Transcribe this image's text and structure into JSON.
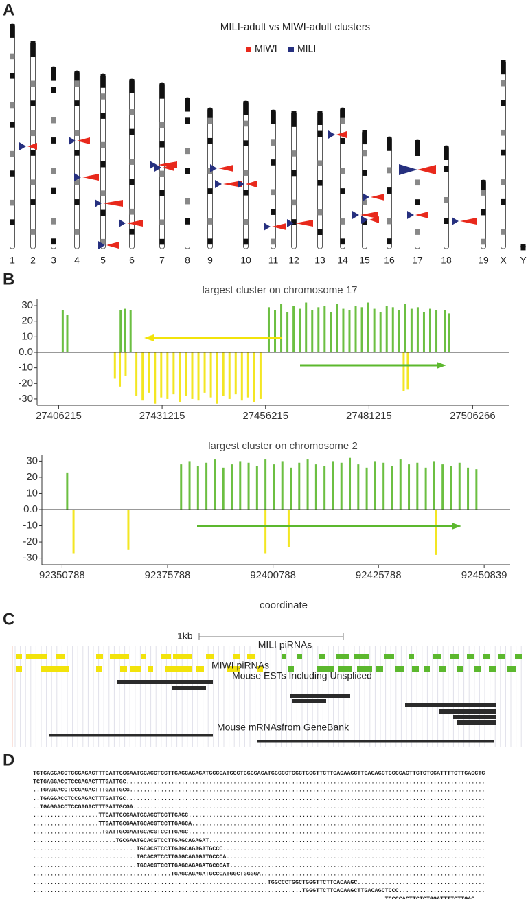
{
  "panel_a": {
    "label": "A",
    "title": "MILI-adult  vs MIWI-adult clusters",
    "legend": [
      {
        "name": "MIWI",
        "color": "#e8291c"
      },
      {
        "name": "MILI",
        "color": "#26307f"
      }
    ],
    "chromosomes": [
      "1",
      "2",
      "3",
      "4",
      "5",
      "6",
      "7",
      "8",
      "9",
      "10",
      "11",
      "12",
      "13",
      "14",
      "15",
      "16",
      "17",
      "18",
      "19",
      "X",
      "Y"
    ]
  },
  "panel_b": {
    "label": "B"
  },
  "chart_data": [
    {
      "type": "bar",
      "title": "largest cluster on chromosome 17",
      "xlim": [
        27401000,
        27515000
      ],
      "xticks": [
        27406215,
        27431215,
        27456215,
        27481215,
        27506266
      ],
      "ylim": [
        -34,
        34
      ],
      "yticks": [
        30,
        20,
        10,
        {
          "value": 0,
          "label": "0.0"
        },
        -10,
        -20,
        -30
      ],
      "series": [
        {
          "color": "#5cb82e",
          "x": [
            27407200,
            27408300,
            27421200,
            27422300,
            27423600,
            27457000,
            27458500,
            27460000,
            27461500,
            27463000,
            27464500,
            27466000,
            27467500,
            27469000,
            27470500,
            27472000,
            27473500,
            27475000,
            27476500,
            27478000,
            27479500,
            27481000,
            27482500,
            27484000,
            27485500,
            27487000,
            27488500,
            27490000,
            27491500,
            27493000,
            27494500,
            27496000,
            27497500,
            27499500,
            27500600
          ],
          "values": [
            27,
            24,
            27,
            28,
            27,
            29,
            27,
            31,
            26,
            30,
            28,
            32,
            27,
            29,
            30,
            26,
            31,
            28,
            27,
            30,
            29,
            32,
            28,
            26,
            30,
            29,
            27,
            31,
            28,
            29,
            26,
            28,
            27,
            27,
            25
          ]
        },
        {
          "color": "#f2e30b",
          "x": [
            27419800,
            27421000,
            27422400,
            27425000,
            27426500,
            27428000,
            27429500,
            27431000,
            27432500,
            27434000,
            27435500,
            27437000,
            27438500,
            27440000,
            27441500,
            27443000,
            27444500,
            27446000,
            27447500,
            27449000,
            27450500,
            27452000,
            27453500,
            27455000,
            27489600,
            27490600
          ],
          "values": [
            -17,
            -22,
            -15,
            -28,
            -31,
            -26,
            -33,
            -29,
            -30,
            -27,
            -32,
            -28,
            -30,
            -31,
            -26,
            -29,
            -33,
            -28,
            -30,
            -27,
            -31,
            -29,
            -32,
            -30,
            -25,
            -24
          ]
        }
      ]
    },
    {
      "type": "bar",
      "title": "largest cluster on chromosome 2",
      "x_label": "coordinate",
      "xlim": [
        92346000,
        92457000
      ],
      "xticks": [
        92350788,
        92375788,
        92400788,
        92425788,
        92450839
      ],
      "ylim": [
        -34,
        34
      ],
      "yticks": [
        30,
        20,
        10,
        {
          "value": 0,
          "label": "0.0"
        },
        -10,
        -20,
        -30
      ],
      "series": [
        {
          "color": "#5cb82e",
          "x": [
            92352000,
            92379000,
            92381000,
            92383000,
            92385000,
            92387000,
            92389000,
            92391000,
            92393000,
            92395000,
            92397000,
            92399000,
            92401000,
            92403000,
            92405000,
            92407000,
            92409000,
            92411000,
            92413000,
            92415000,
            92417000,
            92419000,
            92421000,
            92423000,
            92425000,
            92427000,
            92429000,
            92431000,
            92433000,
            92435000,
            92437000,
            92439000,
            92441000,
            92443000,
            92445000,
            92447000,
            92449000
          ],
          "values": [
            23,
            28,
            30,
            27,
            29,
            31,
            26,
            28,
            30,
            29,
            27,
            31,
            28,
            30,
            26,
            29,
            31,
            28,
            27,
            30,
            29,
            32,
            28,
            26,
            30,
            29,
            27,
            31,
            28,
            29,
            26,
            30,
            28,
            27,
            29,
            26,
            25
          ]
        },
        {
          "color": "#f2e30b",
          "x": [
            92353500,
            92366500,
            92399000,
            92404500,
            92439500
          ],
          "values": [
            -27,
            -25,
            -27,
            -23,
            -28
          ]
        }
      ]
    }
  ],
  "panel_c": {
    "label": "C",
    "scale": "1kb",
    "tracks": [
      "MILI piRNAs",
      "MIWI piRNAs",
      "Mouse ESTs Including Unspliced",
      "Mouse mRNAsfrom GeneBank"
    ]
  },
  "panel_d": {
    "label": "D",
    "rows": [
      "TCTGAGGACCTCCGAGACTTTGATTGCGAATGCACGTCCTTGAGCAGAGATGCCCATGGCTGGGGAGATGGCCCTGGCTGGGTTCTTCACAAGCTTGACAGCTCCCCACTTCTCTGGATTTTCTTGACCTC",
      "TCTGAGGACCTCCGAGACTTTGATTGC........................................................................................................",
      "..TGAGGACCTCCGAGACTTTGATTGCG.......................................................................................................",
      "..TGAGGACCTCCGAGACTTTGATTGC........................................................................................................",
      "..TGAGGACCTCCGAGACTTTGATTGCGA......................................................................................................",
      "...................TTGATTGCGAATGCACGTCCTTGAGC......................................................................................",
      "...................TTGATTGCGAATGCACGTCCTTGAGCA.....................................................................................",
      "....................TGATTGCGAATGCACGTCCTTGAGC......................................................................................",
      "........................TGCGAATGCACGTCCTTGAGCAGAGAT................................................................................",
      "..............................TGCACGTCCTTGAGCAGAGATGCCC............................................................................",
      "..............................TGCACGTCCTTGAGCAGAGATGCCCA...........................................................................",
      "..............................TGCACGTCCTTGAGCAGAGATGCCCAT..........................................................................",
      "........................................TGAGCAGAGATGCCCATGGCTGGGGA.................................................................",
      "....................................................................TGGCCCTGGCTGGGTTCTTCACAAGC.....................................",
      "..............................................................................TGGGTTCTTCACAAGCTTGACAGCTCCC.........................",
      "......................................................................................................TCCCCACTTCTCTGGATTTTCTTGAC..."
    ]
  }
}
